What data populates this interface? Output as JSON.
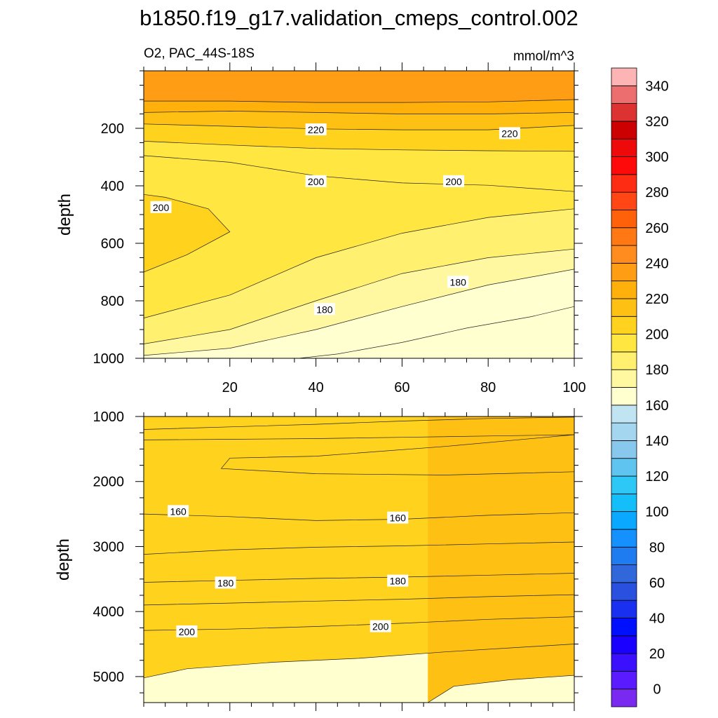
{
  "figure": {
    "title": "b1850.f19_g17.validation_cmeps_control.002",
    "left_label": "O2, PAC_44S-18S",
    "right_label": "mmol/m^3"
  },
  "chart_data": [
    {
      "type": "contour",
      "panel": "upper",
      "xlabel": "",
      "ylabel": "depth",
      "xlim": [
        0,
        100
      ],
      "ylim": [
        0,
        1000
      ],
      "y_reversed": true,
      "x_ticks": [
        20,
        40,
        60,
        80,
        100
      ],
      "y_ticks": [
        200,
        400,
        600,
        800,
        1000
      ],
      "contour_levels": [
        {
          "level": 170,
          "pts": [
            [
              36,
              1000
            ],
            [
              45,
              985
            ],
            [
              60,
              945
            ],
            [
              75,
              895
            ],
            [
              90,
              855
            ],
            [
              100,
              820
            ]
          ]
        },
        {
          "level": 180,
          "pts": [
            [
              0,
              1000
            ],
            [
              0,
              990
            ],
            [
              20,
              965
            ],
            [
              40,
              900
            ],
            [
              60,
              820
            ],
            [
              80,
              745
            ],
            [
              100,
              690
            ]
          ]
        },
        {
          "level": 190,
          "pts": [
            [
              0,
              950
            ],
            [
              20,
              900
            ],
            [
              40,
              800
            ],
            [
              60,
              705
            ],
            [
              80,
              650
            ],
            [
              100,
              620
            ]
          ]
        },
        {
          "level": 200,
          "pts": [
            [
              0,
              860
            ],
            [
              20,
              780
            ],
            [
              40,
              650
            ],
            [
              60,
              565
            ],
            [
              80,
              510
            ],
            [
              100,
              480
            ]
          ]
        },
        {
          "level": 205,
          "pts": [
            [
              0,
              700
            ],
            [
              10,
              640
            ],
            [
              20,
              560
            ],
            [
              15,
              480
            ],
            [
              5,
              440
            ],
            [
              0,
              430
            ]
          ]
        },
        {
          "level": 200,
          "pts": [
            [
              0,
              295
            ],
            [
              20,
              318
            ],
            [
              40,
              365
            ],
            [
              60,
              390
            ],
            [
              80,
              398
            ],
            [
              100,
              420
            ]
          ]
        },
        {
          "level": 210,
          "pts": [
            [
              0,
              245
            ],
            [
              20,
              258
            ],
            [
              40,
              270
            ],
            [
              60,
              275
            ],
            [
              80,
              278
            ],
            [
              100,
              280
            ]
          ]
        },
        {
          "level": 220,
          "pts": [
            [
              0,
              185
            ],
            [
              20,
              193
            ],
            [
              40,
              202
            ],
            [
              60,
              205
            ],
            [
              80,
              205
            ],
            [
              100,
              190
            ]
          ]
        },
        {
          "level": 230,
          "pts": [
            [
              0,
              145
            ],
            [
              20,
              140
            ],
            [
              40,
              145
            ],
            [
              60,
              150
            ],
            [
              80,
              150
            ],
            [
              100,
              145
            ]
          ]
        },
        {
          "level": 240,
          "pts": [
            [
              0,
              105
            ],
            [
              20,
              105
            ],
            [
              40,
              110
            ],
            [
              60,
              110
            ],
            [
              80,
              108
            ],
            [
              100,
              100
            ]
          ]
        }
      ],
      "contour_labels": [
        {
          "text": "220",
          "x": 40,
          "y": 205
        },
        {
          "text": "220",
          "x": 85,
          "y": 218
        },
        {
          "text": "200",
          "x": 40,
          "y": 385
        },
        {
          "text": "200",
          "x": 72,
          "y": 385
        },
        {
          "text": "200",
          "x": 4,
          "y": 475
        },
        {
          "text": "180",
          "x": 73,
          "y": 735
        },
        {
          "text": "180",
          "x": 42,
          "y": 830
        }
      ]
    },
    {
      "type": "contour",
      "panel": "lower",
      "xlabel": "",
      "ylabel": "depth",
      "xlim": [
        0,
        100
      ],
      "ylim": [
        1000,
        5400
      ],
      "y_reversed": true,
      "x_ticks": [
        20,
        40,
        60,
        80,
        100
      ],
      "y_ticks": [
        1000,
        2000,
        3000,
        4000,
        5000
      ],
      "contour_levels": [
        {
          "level": 170,
          "pts": [
            [
              0,
              1200
            ],
            [
              20,
              1160
            ],
            [
              40,
              1120
            ],
            [
              60,
              1070
            ],
            [
              80,
              1030
            ],
            [
              100,
              1010
            ]
          ]
        },
        {
          "level": 160,
          "pts": [
            [
              0,
              1360
            ],
            [
              20,
              1350
            ],
            [
              40,
              1340
            ],
            [
              60,
              1320
            ],
            [
              80,
              1300
            ],
            [
              100,
              1280
            ]
          ]
        },
        {
          "level": 150,
          "pts": [
            [
              100,
              1280
            ],
            [
              70,
              1460
            ],
            [
              40,
              1610
            ],
            [
              20,
              1640
            ],
            [
              18,
              1800
            ],
            [
              40,
              1880
            ],
            [
              70,
              1900
            ],
            [
              100,
              1850
            ]
          ]
        },
        {
          "level": 160,
          "pts": [
            [
              0,
              2500
            ],
            [
              20,
              2540
            ],
            [
              40,
              2600
            ],
            [
              60,
              2580
            ],
            [
              80,
              2520
            ],
            [
              100,
              2480
            ]
          ]
        },
        {
          "level": 170,
          "pts": [
            [
              0,
              3120
            ],
            [
              20,
              3050
            ],
            [
              40,
              3010
            ],
            [
              60,
              2990
            ],
            [
              80,
              2960
            ],
            [
              100,
              2930
            ]
          ]
        },
        {
          "level": 180,
          "pts": [
            [
              0,
              3550
            ],
            [
              20,
              3520
            ],
            [
              40,
              3490
            ],
            [
              60,
              3470
            ],
            [
              80,
              3440
            ],
            [
              100,
              3410
            ]
          ]
        },
        {
          "level": 190,
          "pts": [
            [
              0,
              3900
            ],
            [
              20,
              3870
            ],
            [
              40,
              3840
            ],
            [
              60,
              3810
            ],
            [
              80,
              3770
            ],
            [
              100,
              3740
            ]
          ]
        },
        {
          "level": 200,
          "pts": [
            [
              0,
              4290
            ],
            [
              20,
              4270
            ],
            [
              40,
              4230
            ],
            [
              60,
              4180
            ],
            [
              80,
              4120
            ],
            [
              100,
              4080
            ]
          ]
        },
        {
          "level": 210,
          "pts": [
            [
              0,
              5020
            ],
            [
              10,
              4880
            ],
            [
              30,
              4780
            ],
            [
              50,
              4720
            ],
            [
              70,
              4620
            ],
            [
              100,
              4500
            ]
          ]
        },
        {
          "level": 220,
          "pts": [
            [
              66,
              5400
            ],
            [
              72,
              5150
            ],
            [
              85,
              5050
            ],
            [
              100,
              4980
            ]
          ]
        }
      ],
      "contour_labels": [
        {
          "text": "160",
          "x": 8,
          "y": 2460
        },
        {
          "text": "160",
          "x": 59,
          "y": 2560
        },
        {
          "text": "180",
          "x": 19,
          "y": 3560
        },
        {
          "text": "180",
          "x": 59,
          "y": 3530
        },
        {
          "text": "200",
          "x": 10,
          "y": 4310
        },
        {
          "text": "200",
          "x": 55,
          "y": 4230
        }
      ]
    },
    {
      "type": "colorbar",
      "levels": [
        0,
        10,
        20,
        30,
        40,
        50,
        60,
        70,
        80,
        90,
        100,
        110,
        120,
        130,
        140,
        150,
        160,
        170,
        180,
        190,
        200,
        210,
        220,
        230,
        240,
        250,
        260,
        270,
        280,
        290,
        300,
        310,
        320,
        330,
        340,
        350
      ],
      "tick_labels": [
        "0",
        "20",
        "40",
        "60",
        "80",
        "100",
        "120",
        "140",
        "160",
        "180",
        "200",
        "220",
        "240",
        "260",
        "280",
        "300",
        "320",
        "340"
      ],
      "colors": [
        "#7a2af0",
        "#5a1cff",
        "#3a10ff",
        "#1a00ff",
        "#0010ff",
        "#1a30f0",
        "#2a50e0",
        "#3068dc",
        "#1e7cf0",
        "#1490ff",
        "#0aa8ff",
        "#14bef8",
        "#2ec8f6",
        "#60c4f0",
        "#88c8ec",
        "#a4d6f0",
        "#c0e4f2",
        "#ffffd0",
        "#fff8a0",
        "#fff070",
        "#ffe640",
        "#ffd21e",
        "#ffc014",
        "#ffb00a",
        "#ff9e14",
        "#ff8c1e",
        "#ff7814",
        "#ff600a",
        "#ff4614",
        "#ff2c14",
        "#ff0a0a",
        "#ee0a0a",
        "#cc0000",
        "#dc3232",
        "#ec6e6e",
        "#fcb4b4"
      ]
    }
  ]
}
